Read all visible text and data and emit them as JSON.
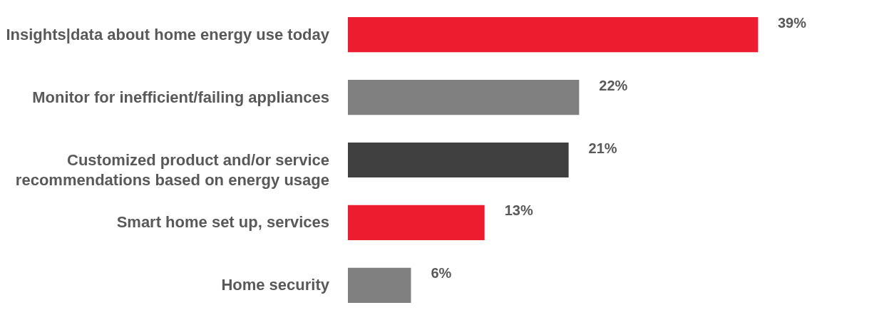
{
  "chart_data": {
    "type": "bar",
    "orientation": "horizontal",
    "categories": [
      "Insights|data about home energy use today",
      "Monitor for inefficient/failing appliances",
      "Customized product and/or service recommendations based on energy usage",
      "Smart home set up, services",
      "Home security"
    ],
    "values": [
      39,
      22,
      21,
      13,
      6
    ],
    "colors": [
      "#ed1c2e",
      "#808080",
      "#404040",
      "#ed1c2e",
      "#808080"
    ],
    "value_labels": [
      "39%",
      "22%",
      "21%",
      "13%",
      "6%"
    ],
    "legend": false
  }
}
